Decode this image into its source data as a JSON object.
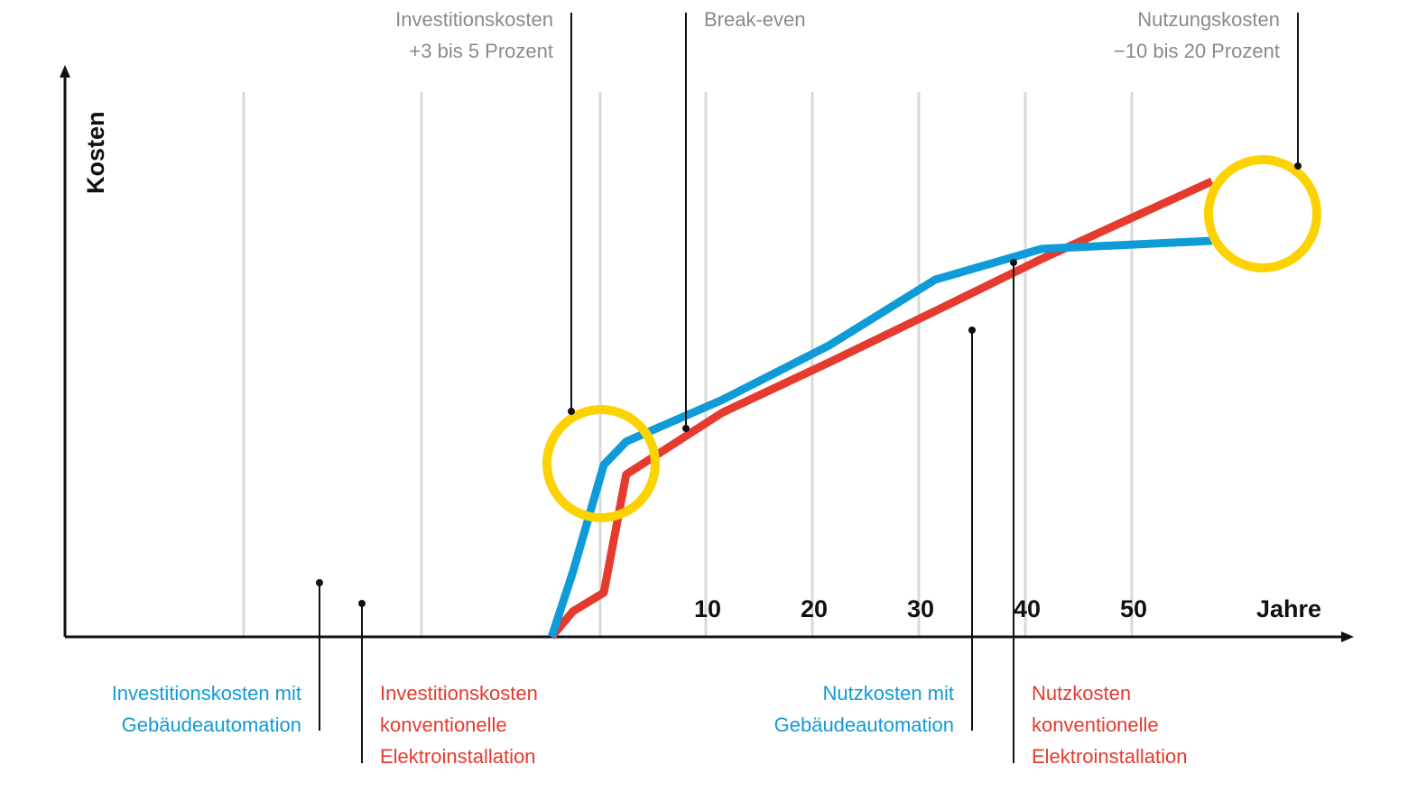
{
  "chart_data": {
    "type": "line",
    "xlabel": "Jahre",
    "ylabel": "Kosten",
    "x_ticks": [
      "10",
      "20",
      "30",
      "40",
      "50"
    ],
    "grid": true,
    "colors": {
      "gebaeudeautomation": "#0f9bd7",
      "konventionell": "#e53a2e",
      "highlight": "#fcd200",
      "grid": "#d9d9d9"
    },
    "series": [
      {
        "key": "gebaeudeautomation",
        "points": [
          [
            -6.0,
            0.0
          ],
          [
            -4.0,
            12.2
          ],
          [
            -1.1,
            32.3
          ],
          [
            1.0,
            36.7
          ],
          [
            10.0,
            44.5
          ],
          [
            20.0,
            54.7
          ],
          [
            30.0,
            67.1
          ],
          [
            40.0,
            72.9
          ],
          [
            56.0,
            74.4
          ]
        ]
      },
      {
        "key": "konventionell",
        "points": [
          [
            -6.0,
            0.0
          ],
          [
            -4.0,
            4.8
          ],
          [
            -1.1,
            8.3
          ],
          [
            1.0,
            30.5
          ],
          [
            10.0,
            42.1
          ],
          [
            20.0,
            51.5
          ],
          [
            30.0,
            61.2
          ],
          [
            40.0,
            71.0
          ],
          [
            56.0,
            85.6
          ]
        ]
      }
    ],
    "annotations": {
      "invest_top": {
        "line1": "Investitionskosten",
        "line2": "+3 bis 5 Prozent"
      },
      "breakeven": {
        "line1": "Break-even"
      },
      "nutzung_top": {
        "line1": "Nutzungskosten",
        "line2": "−10 bis 20 Prozent"
      },
      "invest_blue": {
        "line1": "Investitionskosten mit",
        "line2": "Gebäudeautomation"
      },
      "invest_red": {
        "line1": "Investitionskosten",
        "line2": "konventionelle",
        "line3": "Elektroinstallation"
      },
      "nutz_blue": {
        "line1": "Nutzkosten mit",
        "line2": "Gebäudeautomation"
      },
      "nutz_red": {
        "line1": "Nutzkosten",
        "line2": "konventionelle",
        "line3": "Elektroinstallation"
      }
    }
  }
}
